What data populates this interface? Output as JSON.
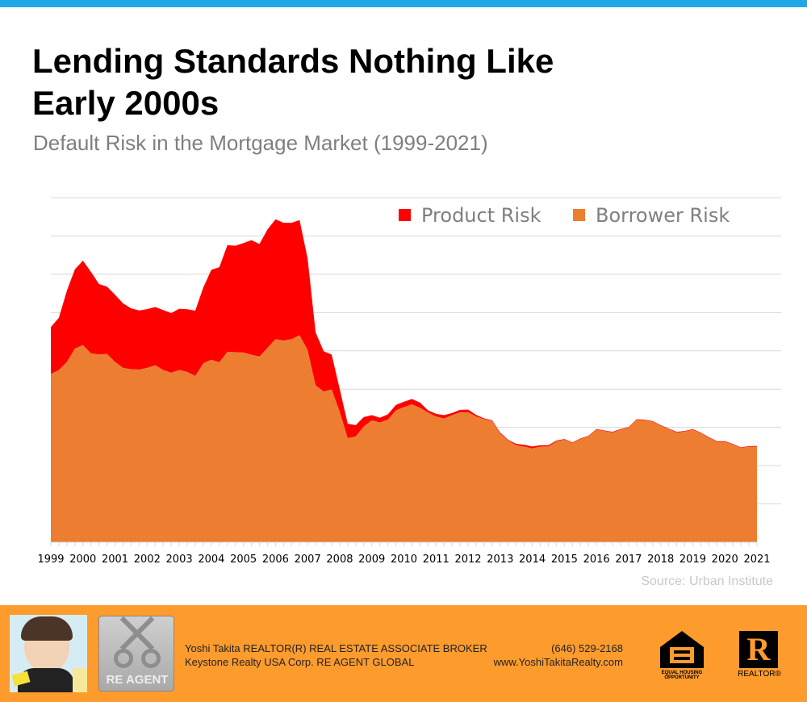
{
  "header": {
    "title": "Lending Standards Nothing Like Early 2000s",
    "subtitle": "Default Risk in the Mortgage Market (1999-2021)",
    "source": "Source: Urban Institute"
  },
  "colors": {
    "top_bar": "#1ea8e6",
    "product_risk": "#ff0000",
    "borrower_risk": "#ed7d31",
    "footer": "#fe9b2d"
  },
  "chart_data": {
    "type": "area",
    "stacked": true,
    "title": "",
    "xlabel": "",
    "ylabel": "",
    "x_tick_labels": [
      "1999",
      "2000",
      "2001",
      "2002",
      "2003",
      "2004",
      "2005",
      "2006",
      "2007",
      "2008",
      "2009",
      "2010",
      "2011",
      "2012",
      "2013",
      "2014",
      "2015",
      "2016",
      "2017",
      "2018",
      "2019",
      "2020",
      "2021"
    ],
    "x_frequency": "quarterly",
    "x_range": [
      "1999 Q1",
      "2021 Q1"
    ],
    "ylim": [
      0,
      18
    ],
    "y_tick_labels_shown": false,
    "grid": true,
    "legend_position": "top-right",
    "series": [
      {
        "name": "Borrower Risk",
        "color": "#ed7d31",
        "values": [
          8.79,
          9.0,
          9.42,
          10.12,
          10.3,
          9.87,
          9.81,
          9.84,
          9.42,
          9.11,
          9.04,
          9.02,
          9.11,
          9.25,
          9.0,
          8.86,
          9.0,
          8.9,
          8.69,
          9.35,
          9.54,
          9.4,
          9.95,
          9.93,
          9.91,
          9.8,
          9.7,
          10.16,
          10.61,
          10.54,
          10.61,
          10.82,
          10.05,
          8.2,
          7.87,
          7.99,
          6.82,
          5.44,
          5.53,
          6.05,
          6.37,
          6.26,
          6.4,
          6.89,
          7.06,
          7.21,
          7.03,
          6.78,
          6.57,
          6.47,
          6.64,
          6.79,
          6.79,
          6.57,
          6.43,
          6.34,
          5.68,
          5.31,
          5.07,
          5.0,
          4.9,
          5.0,
          5.0,
          5.27,
          5.36,
          5.18,
          5.39,
          5.53,
          5.88,
          5.81,
          5.74,
          5.88,
          5.99,
          6.4,
          6.37,
          6.3,
          6.09,
          5.91,
          5.74,
          5.78,
          5.88,
          5.7,
          5.46,
          5.25,
          5.25,
          5.11,
          4.93,
          4.99,
          5.0
        ]
      },
      {
        "name": "Product Risk",
        "color": "#ff0000",
        "values": [
          2.45,
          2.73,
          3.72,
          4.14,
          4.41,
          4.25,
          3.68,
          3.51,
          3.51,
          3.37,
          3.18,
          3.09,
          3.07,
          3.04,
          3.13,
          3.11,
          3.2,
          3.27,
          3.41,
          3.96,
          4.69,
          4.97,
          5.57,
          5.56,
          5.72,
          5.98,
          5.88,
          6.18,
          6.26,
          6.15,
          6.08,
          6.01,
          4.77,
          2.76,
          2.11,
          1.81,
          1.19,
          0.75,
          0.59,
          0.49,
          0.27,
          0.24,
          0.28,
          0.28,
          0.28,
          0.27,
          0.27,
          0.11,
          0.14,
          0.17,
          0.11,
          0.13,
          0.14,
          0.08,
          0.04,
          0.03,
          0.05,
          0.04,
          0.07,
          0.09,
          0.1,
          0.07,
          0.07,
          0.04,
          0.03,
          0.03,
          0.03,
          0.03,
          0.03,
          0.03,
          0.03,
          0.03,
          0.03,
          0.03,
          0.03,
          0.03,
          0.03,
          0.03,
          0.03,
          0.03,
          0.03,
          0.03,
          0.03,
          0.03,
          0.03,
          0.03,
          0.03,
          0.03,
          0.03
        ]
      }
    ]
  },
  "footer": {
    "agent_line": "Yoshi Takita REALTOR(R) REAL ESTATE ASSOCIATE BROKER",
    "company_line": "Keystone Realty USA Corp.  RE AGENT GLOBAL",
    "phone": "(646) 529-2168",
    "website": "www.YoshiTakitaRealty.com",
    "re_agent_logo": "RE AGENT",
    "equal_housing_logo": "EQUAL HOUSING OPPORTUNITY",
    "realtor_logo": "REALTOR®"
  }
}
